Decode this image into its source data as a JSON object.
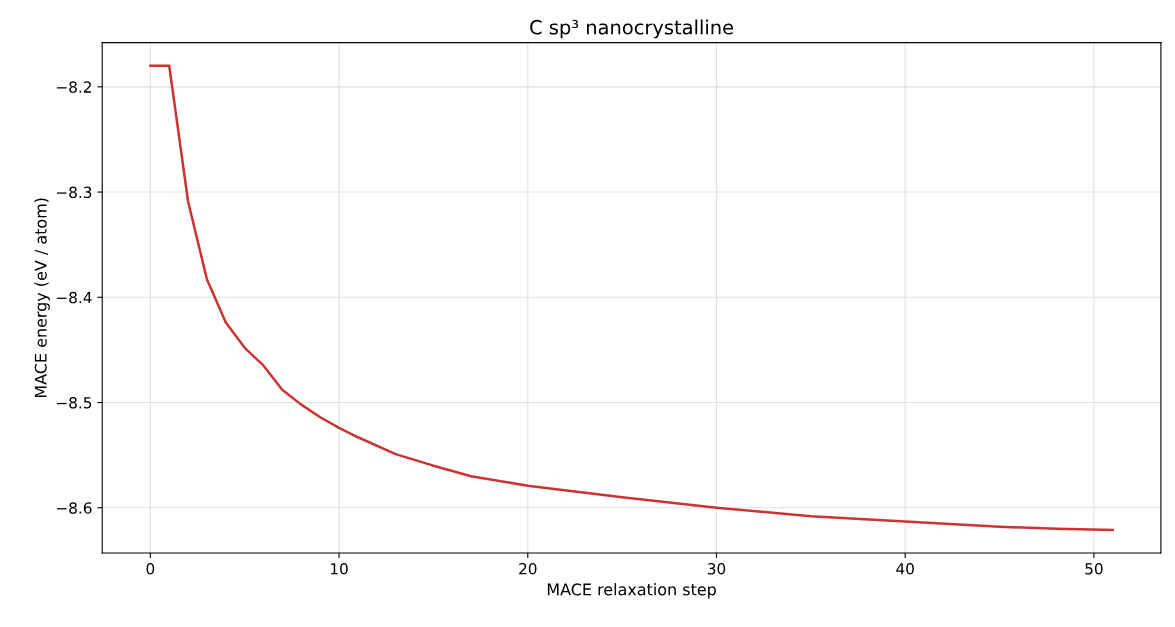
{
  "chart_data": {
    "type": "line",
    "title": "C sp³ nanocrystalline",
    "xlabel": "MACE relaxation step",
    "ylabel": "MACE energy (eV / atom)",
    "x": [
      0,
      1,
      2,
      3,
      4,
      5,
      6,
      7,
      8,
      9,
      10,
      11,
      13,
      15,
      17,
      20,
      25,
      30,
      35,
      40,
      45,
      48,
      51
    ],
    "series": [
      {
        "color": "#cc3333",
        "values": [
          -8.18,
          -8.18,
          -8.309,
          -8.383,
          -8.424,
          -8.448,
          -8.465,
          -8.488,
          -8.502,
          -8.514,
          -8.524,
          -8.533,
          -8.549,
          -8.56,
          -8.57,
          -8.579,
          -8.59,
          -8.6,
          -8.608,
          -8.613,
          -8.618,
          -8.62,
          -8.621
        ]
      }
    ],
    "xlim": [
      -2.55,
      53.55
    ],
    "ylim": [
      -8.643,
      -8.158
    ],
    "xticks": [
      0,
      10,
      20,
      30,
      40,
      50
    ],
    "yticks": [
      {
        "value": -8.6,
        "label": "−8.6"
      },
      {
        "value": -8.5,
        "label": "−8.5"
      },
      {
        "value": -8.4,
        "label": "−8.4"
      },
      {
        "value": -8.3,
        "label": "−8.3"
      },
      {
        "value": -8.2,
        "label": "−8.2"
      }
    ],
    "grid": true
  }
}
